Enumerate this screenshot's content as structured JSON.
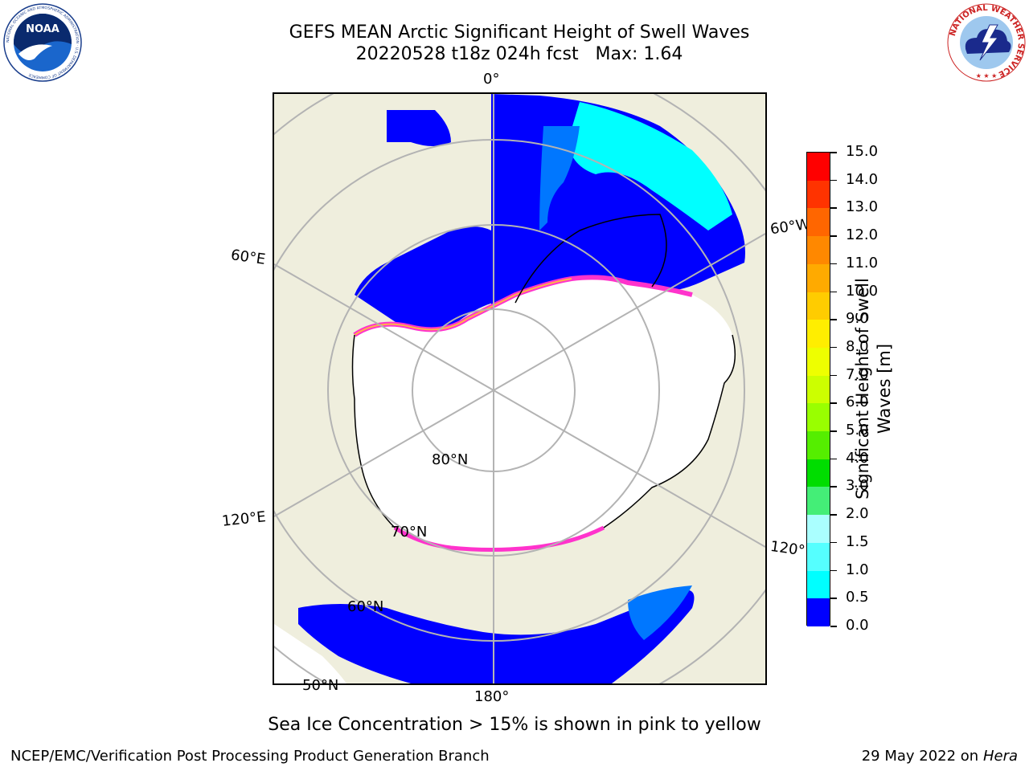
{
  "header": {
    "title_line1": "GEFS MEAN Arctic Significant Height of Swell Waves",
    "title_line2": "20220528 t18z 024h fcst   Max: 1.64"
  },
  "logos": {
    "noaa_text": "NOAA",
    "noaa_ring_text": "NATIONAL OCEANIC AND ATMOSPHERIC ADMINISTRATION · U.S. DEPARTMENT OF COMMERCE",
    "nws_ring_text": "NATIONAL WEATHER SERVICE"
  },
  "map": {
    "colors": {
      "land": "#efeedd",
      "ocean_low": "#0000ff",
      "ocean_mid": "#0070ff",
      "ocean_high": "#00ffff",
      "ice_pink": "#ff33cc",
      "ice_yellow": "#ffb347",
      "grid": "#b3b3b3",
      "coast": "#000000"
    },
    "labels": {
      "lon_0": "0°",
      "lon_60E": "60°E",
      "lon_120E": "120°E",
      "lon_180": "180°",
      "lon_60W": "60°W",
      "lon_120W": "120°W",
      "lat_80N": "80°N",
      "lat_70N": "70°N",
      "lat_60N": "60°N",
      "lat_50N": "50°N"
    }
  },
  "colorbar": {
    "title_line1": "Significant Height of Swell",
    "title_line2": "Waves [m]",
    "ticks": [
      "15.0",
      "14.0",
      "13.0",
      "12.0",
      "11.0",
      "10.0",
      "9.0",
      "8.0",
      "7.0",
      "6.0",
      "5.0",
      "4.0",
      "3.0",
      "2.0",
      "1.5",
      "1.0",
      "0.5",
      "0.0"
    ],
    "colors": [
      "#ff0000",
      "#ff3300",
      "#ff6600",
      "#ff8800",
      "#ffaa00",
      "#ffcc00",
      "#ffee00",
      "#eeff00",
      "#ccff00",
      "#99ff00",
      "#55ee00",
      "#00dd00",
      "#44ee77",
      "#aaffff",
      "#55ffff",
      "#00ffff",
      "#0077ff",
      "#0000ff"
    ]
  },
  "footer": {
    "ice_note": "Sea Ice Concentration > 15% is shown in pink to yellow",
    "left": "NCEP/EMC/Verification Post Processing Product Generation Branch",
    "right_date": "29 May 2022 on",
    "right_host": "Hera"
  }
}
